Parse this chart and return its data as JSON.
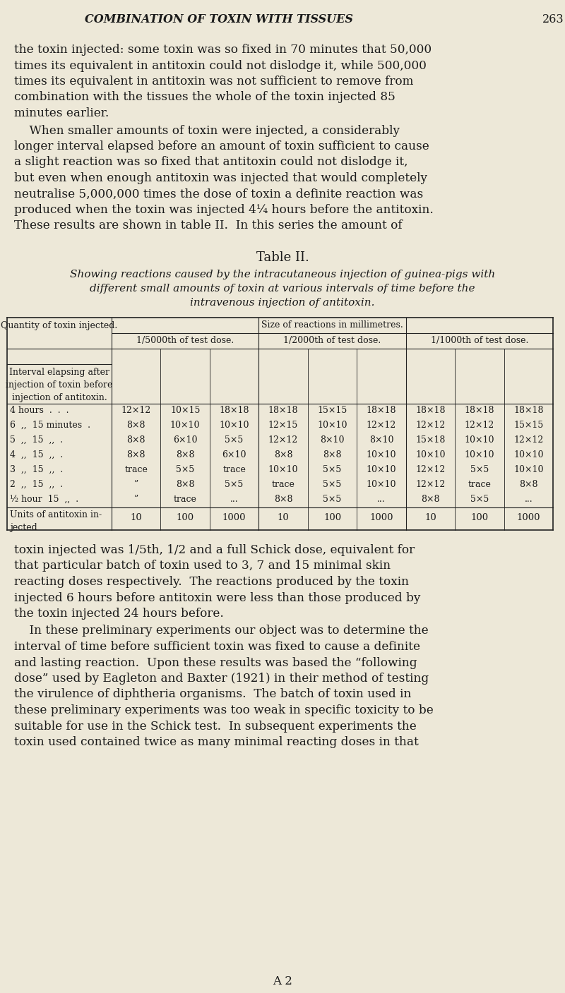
{
  "bg_color": "#ede8d8",
  "text_color": "#1a1a1a",
  "page_title": "COMBINATION OF TOXIN WITH TISSUES",
  "page_number": "263",
  "para1_lines": [
    "the toxin injected: some toxin was so fixed in 70 minutes that 50,000",
    "times its equivalent in antitoxin could not dislodge it, while 500,000",
    "times its equivalent in antitoxin was not sufficient to remove from",
    "combination with the tissues the whole of the toxin injected 85",
    "minutes earlier."
  ],
  "para2_lines": [
    "    When smaller amounts of toxin were injected, a considerably",
    "longer interval elapsed before an amount of toxin sufficient to cause",
    "a slight reaction was so fixed that antitoxin could not dislodge it,",
    "but even when enough antitoxin was injected that would completely",
    "neutralise 5,000,000 times the dose of toxin a definite reaction was",
    "produced when the toxin was injected 4¼ hours before the antitoxin.",
    "These results are shown in table II.  In this series the amount of"
  ],
  "table_title": "Table II.",
  "table_subtitle_lines": [
    "Showing reactions caused by the intracutaneous injection of guinea-pigs with",
    "different small amounts of toxin at various intervals of time before the",
    "intravenous injection of antitoxin."
  ],
  "col_header_top": "Size of reactions in millimetres.",
  "col_header_mid": [
    "1/5000th of test dose.",
    "1/2000th of test dose.",
    "1/1000th of test dose."
  ],
  "quantity_label": "Quantity of toxin injected.",
  "row_label_extra": "Interval elapsing after\ninjection of toxin before\ninjection of antitoxin.",
  "row_labels": [
    "4 hours  .  .  .",
    "6  ,,  15 minutes  .",
    "5  ,,  15  ,,  .",
    "4  ,,  15  ,,  .",
    "3  ,,  15  ,,  .",
    "2  ,,  15  ,,  .",
    "½ hour  15  ,,  ."
  ],
  "table_data": [
    [
      "12×12",
      "10×15",
      "18×18",
      "18×18",
      "15×15",
      "18×18",
      "18×18",
      "18×18",
      "18×18"
    ],
    [
      "8×8",
      "10×10",
      "10×10",
      "12×15",
      "10×10",
      "12×12",
      "12×12",
      "12×12",
      "15×15"
    ],
    [
      "8×8",
      "6×10",
      "5×5",
      "12×12",
      "8×10",
      "8×10",
      "15×18",
      "10×10",
      "12×12"
    ],
    [
      "8×8",
      "8×8",
      "6×10",
      "8×8",
      "8×8",
      "10×10",
      "10×10",
      "10×10",
      "10×10"
    ],
    [
      "trace",
      "5×5",
      "trace",
      "10×10",
      "5×5",
      "10×10",
      "12×12",
      "5×5",
      "10×10"
    ],
    [
      "”",
      "8×8",
      "5×5",
      "trace",
      "5×5",
      "10×10",
      "12×12",
      "trace",
      "8×8"
    ],
    [
      "”",
      "trace",
      "...",
      "8×8",
      "5×5",
      "...",
      "8×8",
      "5×5",
      "..."
    ]
  ],
  "units_label": "Units of antitoxin in-\njected",
  "units_vals": [
    "10",
    "100",
    "1000",
    "10",
    "100",
    "1000",
    "10",
    "100",
    "1000"
  ],
  "para3_lines": [
    "toxin injected was 1/5th, 1/2 and a full Schick dose, equivalent for",
    "that particular batch of toxin used to 3, 7 and 15 minimal skin",
    "reacting doses respectively.  The reactions produced by the toxin",
    "injected 6 hours before antitoxin were less than those produced by",
    "the toxin injected 24 hours before."
  ],
  "para4_lines": [
    "    In these preliminary experiments our object was to determine the",
    "interval of time before sufficient toxin was fixed to cause a definite",
    "and lasting reaction.  Upon these results was based the “following",
    "dose” used by Eagleton and Baxter (1921) in their method of testing",
    "the virulence of diphtheria organisms.  The batch of toxin used in",
    "these preliminary experiments was too weak in specific toxicity to be",
    "suitable for use in the Schick test.  In subsequent experiments the",
    "toxin used contained twice as many minimal reacting doses in that"
  ],
  "footer": "A 2"
}
